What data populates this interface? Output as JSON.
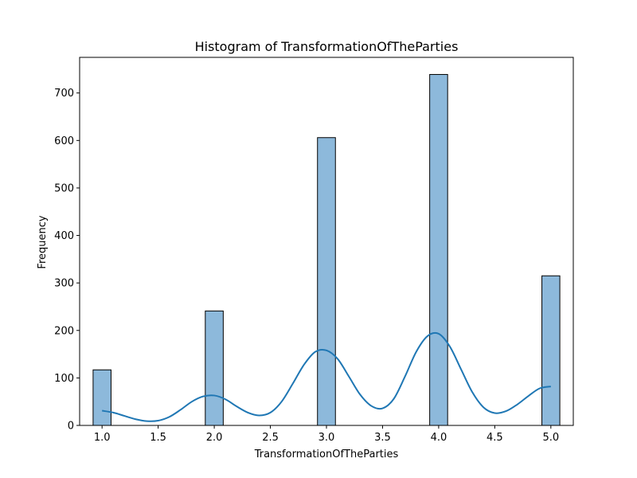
{
  "chart_data": {
    "type": "bar",
    "title": "Histogram of TransformationOfTheParties",
    "xlabel": "TransformationOfTheParties",
    "ylabel": "Frequency",
    "xlim": [
      0.8,
      5.2
    ],
    "ylim": [
      0,
      775
    ],
    "bar_width": 0.16,
    "bars": [
      {
        "x": 1.0,
        "value": 117
      },
      {
        "x": 2.0,
        "value": 241
      },
      {
        "x": 3.0,
        "value": 606
      },
      {
        "x": 4.0,
        "value": 739
      },
      {
        "x": 5.0,
        "value": 315
      }
    ],
    "x_ticks": [
      "1.0",
      "1.5",
      "2.0",
      "2.5",
      "3.0",
      "3.5",
      "4.0",
      "4.5",
      "5.0"
    ],
    "y_ticks": [
      "0",
      "100",
      "200",
      "300",
      "400",
      "500",
      "600",
      "700"
    ],
    "kde": {
      "x": [
        1.0,
        1.1,
        1.2,
        1.3,
        1.4,
        1.5,
        1.6,
        1.7,
        1.8,
        1.9,
        2.0,
        2.1,
        2.2,
        2.3,
        2.4,
        2.5,
        2.6,
        2.7,
        2.8,
        2.9,
        3.0,
        3.1,
        3.2,
        3.3,
        3.4,
        3.5,
        3.6,
        3.7,
        3.8,
        3.9,
        4.0,
        4.1,
        4.2,
        4.3,
        4.4,
        4.5,
        4.6,
        4.7,
        4.8,
        4.9,
        5.0
      ],
      "y": [
        31,
        27,
        20,
        13,
        9,
        10,
        18,
        33,
        50,
        61,
        63,
        55,
        40,
        27,
        21,
        27,
        50,
        88,
        128,
        155,
        158,
        140,
        103,
        65,
        41,
        36,
        56,
        103,
        155,
        188,
        193,
        166,
        118,
        70,
        38,
        26,
        30,
        44,
        62,
        78,
        82
      ]
    },
    "colors": {
      "bar_fill": "#8db9db",
      "bar_edge": "#000000",
      "kde_line": "#1f77b4"
    },
    "grid": false,
    "legend": "none"
  }
}
